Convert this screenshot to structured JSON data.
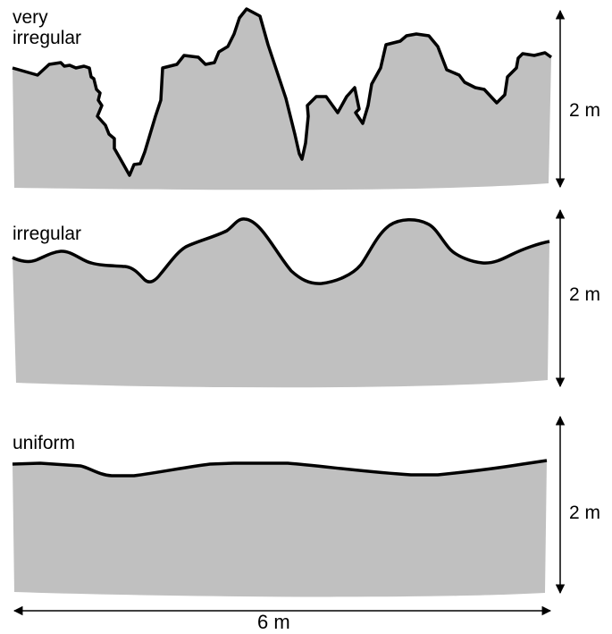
{
  "profiles": [
    {
      "label": "very\nirregular",
      "height_label": "2 m"
    },
    {
      "label": "irregular",
      "height_label": "2 m"
    },
    {
      "label": "uniform",
      "height_label": "2 m"
    }
  ],
  "width_label": "6 m",
  "colors": {
    "fill": "#c0c0c0",
    "line": "#000000",
    "background": "#ffffff"
  }
}
